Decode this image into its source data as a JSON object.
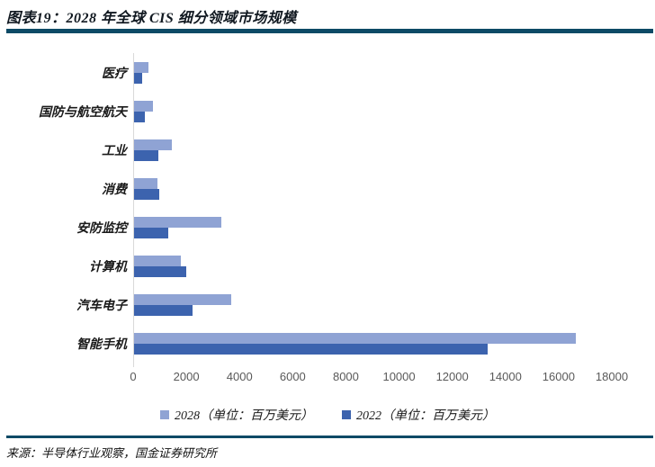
{
  "header": {
    "title": "图表19：2028 年全球 CIS 细分领域市场规模"
  },
  "footer": {
    "source": "来源：半导体行业观察，国金证券研究所"
  },
  "colors": {
    "series_2028": "#8FA3D4",
    "series_2022": "#3C63AE",
    "divider": "#0D4A66",
    "axis_line": "#D9D9D9",
    "tick_label": "#595959"
  },
  "chart_data": {
    "type": "bar",
    "orientation": "horizontal",
    "title": "2028 年全球 CIS 细分领域市场规模",
    "xlabel": "",
    "ylabel": "",
    "unit": "百万美元",
    "categories": [
      "医疗",
      "国防与航空航天",
      "工业",
      "消费",
      "安防监控",
      "计算机",
      "汽车电子",
      "智能手机"
    ],
    "series": [
      {
        "year": "2028",
        "label": "2028（单位：百万美元）",
        "color": "#8FA3D4",
        "values": [
          530,
          700,
          1420,
          880,
          3290,
          1770,
          3660,
          16600
        ]
      },
      {
        "year": "2022",
        "label": "2022（单位：百万美元）",
        "color": "#3C63AE",
        "values": [
          300,
          410,
          900,
          940,
          1290,
          1970,
          2200,
          13300
        ]
      }
    ],
    "xlim": [
      0,
      18000
    ],
    "x_ticks": [
      0,
      2000,
      4000,
      6000,
      8000,
      10000,
      12000,
      14000,
      16000,
      18000
    ],
    "grid": false,
    "legend_position": "bottom"
  }
}
